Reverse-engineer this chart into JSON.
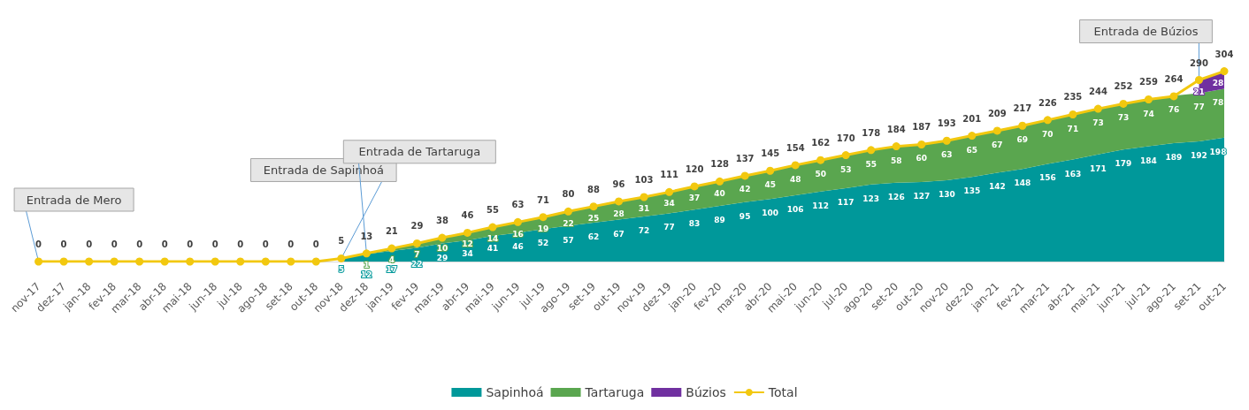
{
  "chart_data": {
    "type": "area",
    "stacked": true,
    "data_labels": true,
    "legend": "bottom",
    "categories": [
      "nov-17",
      "dez-17",
      "jan-18",
      "fev-18",
      "mar-18",
      "abr-18",
      "mai-18",
      "jun-18",
      "jul-18",
      "ago-18",
      "set-18",
      "out-18",
      "nov-18",
      "dez-18",
      "jan-19",
      "fev-19",
      "mar-19",
      "abr-19",
      "mai-19",
      "jun-19",
      "jul-19",
      "ago-19",
      "set-19",
      "out-19",
      "nov-19",
      "dez-19",
      "jan-20",
      "fev-20",
      "mar-20",
      "abr-20",
      "mai-20",
      "jun-20",
      "jul-20",
      "ago-20",
      "set-20",
      "out-20",
      "nov-20",
      "dez-20",
      "jan-21",
      "fev-21",
      "mar-21",
      "abr-21",
      "mai-21",
      "jun-21",
      "jul-21",
      "ago-21",
      "set-21",
      "out-21"
    ],
    "series": [
      {
        "name": "Sapinhoá",
        "color": "#00989a",
        "values": [
          null,
          null,
          null,
          null,
          null,
          null,
          null,
          null,
          null,
          null,
          null,
          null,
          5,
          12,
          17,
          22,
          29,
          34,
          41,
          46,
          52,
          57,
          62,
          67,
          72,
          77,
          83,
          89,
          95,
          100,
          106,
          112,
          117,
          123,
          126,
          127,
          130,
          135,
          142,
          148,
          156,
          163,
          171,
          179,
          184,
          189,
          192,
          198
        ]
      },
      {
        "name": "Tartaruga",
        "color": "#5aa64f",
        "values": [
          null,
          null,
          null,
          null,
          null,
          null,
          null,
          null,
          null,
          null,
          null,
          null,
          null,
          1,
          4,
          7,
          10,
          12,
          14,
          16,
          19,
          22,
          25,
          28,
          31,
          34,
          37,
          40,
          42,
          45,
          48,
          50,
          53,
          55,
          58,
          60,
          63,
          65,
          67,
          69,
          70,
          71,
          73,
          73,
          74,
          76,
          77,
          78
        ]
      },
      {
        "name": "Búzios",
        "color": "#7030a0",
        "values": [
          null,
          null,
          null,
          null,
          null,
          null,
          null,
          null,
          null,
          null,
          null,
          null,
          null,
          null,
          null,
          null,
          null,
          null,
          null,
          null,
          null,
          null,
          null,
          null,
          null,
          null,
          null,
          null,
          null,
          null,
          null,
          null,
          null,
          null,
          null,
          null,
          null,
          null,
          null,
          null,
          null,
          null,
          null,
          null,
          null,
          null,
          21,
          28
        ]
      },
      {
        "name": "Total",
        "type": "line",
        "marker": "circle",
        "color": "#f2c80f",
        "values": [
          0,
          0,
          0,
          0,
          0,
          0,
          0,
          0,
          0,
          0,
          0,
          0,
          5,
          13,
          21,
          29,
          38,
          46,
          55,
          63,
          71,
          80,
          88,
          96,
          103,
          111,
          120,
          128,
          137,
          145,
          154,
          162,
          170,
          178,
          184,
          187,
          193,
          201,
          209,
          217,
          226,
          235,
          244,
          252,
          259,
          264,
          290,
          304
        ]
      }
    ],
    "annotations": [
      {
        "text": "Entrada de Mero",
        "x": "nov-17",
        "y": 0
      },
      {
        "text": "Entrada de Sapinhoá",
        "x": "nov-18",
        "y": 5
      },
      {
        "text": "Entrada de Tartaruga",
        "x": "dez-18",
        "y": 13
      },
      {
        "text": "Entrada de Búzios",
        "x": "set-21",
        "y": 290
      }
    ]
  }
}
